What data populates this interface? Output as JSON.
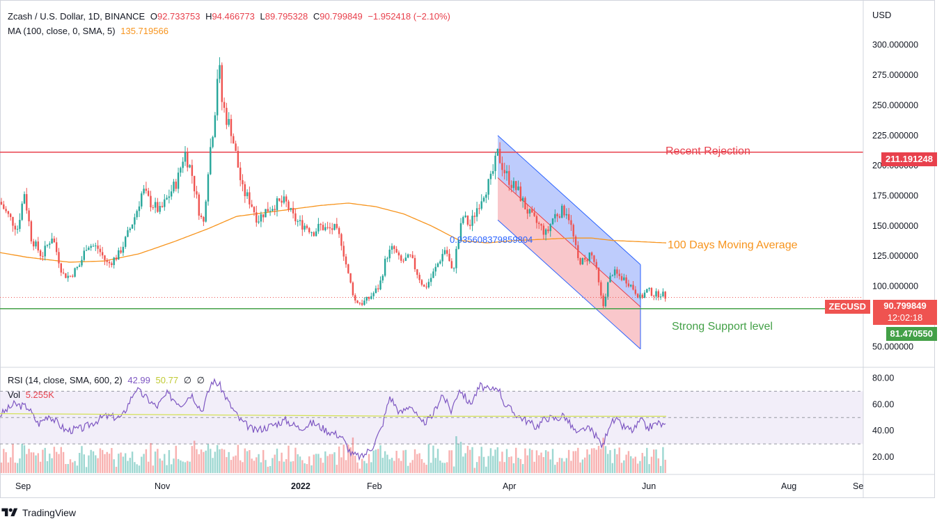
{
  "legend": {
    "symbol": "Zcash / U.S. Dollar, 1D, BINANCE",
    "open_label": "O",
    "open": "92.733753",
    "high_label": "H",
    "high": "94.466773",
    "low_label": "L",
    "low": "89.795328",
    "close_label": "C",
    "close": "90.799849",
    "change": "−1.952418 (−2.10%)",
    "ma_label": "MA (100, close, 0, SMA, 5)",
    "ma_value": "135.719566",
    "rsi_label": "RSI (14, close, SMA, 600, 2)",
    "rsi_value": "42.99",
    "rsi_ma_value": "50.77",
    "rsi_extra1": "∅",
    "rsi_extra2": "∅",
    "vol_label": "Vol",
    "vol_value": "5.255K"
  },
  "currency": "USD",
  "annotations": {
    "resistance": "Recent Rejection",
    "moving_average": "100 Days Moving Average",
    "support": "Strong Support level",
    "channel_value": "0.935608379859804"
  },
  "price_tags": {
    "resistance": "211.191248",
    "symbol": "ZECUSD",
    "current": "90.799849",
    "countdown": "12:02:18",
    "support": "81.470550"
  },
  "footer": {
    "brand": "TradingView"
  },
  "colors": {
    "up": "#26a69a",
    "down": "#ef5350",
    "ma": "#f7941d",
    "resistance": "#e8404c",
    "support": "#43a047",
    "rsi": "#7e57c2",
    "rsi_ma": "#d4e157",
    "channel_blue": "#aebffb",
    "channel_red": "#f8b9be",
    "annotation_blue": "#2962ff"
  },
  "chart_data": {
    "type": "candlestick",
    "price_axis": {
      "ticks": [
        "300.000000",
        "275.000000",
        "250.000000",
        "225.000000",
        "200.000000",
        "175.000000",
        "150.000000",
        "125.000000",
        "100.000000",
        "50.000000"
      ],
      "ylim": [
        45,
        320
      ]
    },
    "rsi_axis": {
      "ticks": [
        "80.00",
        "60.00",
        "40.00",
        "20.00"
      ],
      "ylim": [
        10,
        85
      ],
      "upper_band": 70,
      "lower_band": 30,
      "middle_band": 50
    },
    "x_ticks": [
      "Sep",
      "Nov",
      "2022",
      "Feb",
      "Apr",
      "Jun",
      "Aug",
      "Se"
    ],
    "levels": {
      "resistance": 211.19,
      "support": 81.47,
      "last_close": 90.8
    },
    "price_keyframes": [
      [
        0,
        170
      ],
      [
        10,
        160
      ],
      [
        25,
        148
      ],
      [
        35,
        178
      ],
      [
        45,
        140
      ],
      [
        60,
        125
      ],
      [
        75,
        142
      ],
      [
        90,
        110
      ],
      [
        100,
        108
      ],
      [
        115,
        118
      ],
      [
        125,
        135
      ],
      [
        140,
        132
      ],
      [
        155,
        118
      ],
      [
        170,
        126
      ],
      [
        180,
        138
      ],
      [
        195,
        160
      ],
      [
        205,
        180
      ],
      [
        215,
        170
      ],
      [
        230,
        162
      ],
      [
        245,
        178
      ],
      [
        255,
        188
      ],
      [
        265,
        212
      ],
      [
        275,
        195
      ],
      [
        285,
        165
      ],
      [
        292,
        150
      ],
      [
        300,
        205
      ],
      [
        308,
        240
      ],
      [
        314,
        290
      ],
      [
        318,
        255
      ],
      [
        325,
        240
      ],
      [
        332,
        230
      ],
      [
        340,
        205
      ],
      [
        348,
        180
      ],
      [
        360,
        170
      ],
      [
        370,
        155
      ],
      [
        380,
        162
      ],
      [
        395,
        168
      ],
      [
        410,
        170
      ],
      [
        420,
        158
      ],
      [
        430,
        152
      ],
      [
        440,
        150
      ],
      [
        450,
        145
      ],
      [
        460,
        150
      ],
      [
        470,
        147
      ],
      [
        480,
        148
      ],
      [
        490,
        138
      ],
      [
        500,
        110
      ],
      [
        510,
        88
      ],
      [
        520,
        86
      ],
      [
        530,
        90
      ],
      [
        545,
        100
      ],
      [
        555,
        125
      ],
      [
        565,
        132
      ],
      [
        575,
        120
      ],
      [
        590,
        124
      ],
      [
        600,
        110
      ],
      [
        610,
        98
      ],
      [
        620,
        108
      ],
      [
        630,
        120
      ],
      [
        640,
        132
      ],
      [
        650,
        110
      ],
      [
        655,
        128
      ],
      [
        665,
        158
      ],
      [
        675,
        150
      ],
      [
        685,
        165
      ],
      [
        695,
        178
      ],
      [
        705,
        188
      ],
      [
        715,
        210
      ],
      [
        725,
        195
      ],
      [
        735,
        185
      ],
      [
        745,
        178
      ],
      [
        755,
        165
      ],
      [
        765,
        156
      ],
      [
        775,
        150
      ],
      [
        785,
        143
      ],
      [
        795,
        158
      ],
      [
        805,
        162
      ],
      [
        815,
        163
      ],
      [
        822,
        145
      ],
      [
        830,
        122
      ],
      [
        840,
        120
      ],
      [
        848,
        128
      ],
      [
        855,
        118
      ],
      [
        862,
        95
      ],
      [
        866,
        82
      ],
      [
        872,
        100
      ],
      [
        880,
        112
      ],
      [
        890,
        108
      ],
      [
        900,
        105
      ],
      [
        910,
        98
      ],
      [
        920,
        90
      ],
      [
        930,
        97
      ],
      [
        940,
        93
      ],
      [
        950,
        94
      ],
      [
        957,
        91
      ]
    ],
    "ma_keyframes": [
      [
        0,
        128
      ],
      [
        40,
        124
      ],
      [
        100,
        120
      ],
      [
        150,
        121
      ],
      [
        200,
        127
      ],
      [
        250,
        137
      ],
      [
        300,
        148
      ],
      [
        340,
        158
      ],
      [
        380,
        161
      ],
      [
        420,
        164
      ],
      [
        460,
        167
      ],
      [
        500,
        169
      ],
      [
        540,
        166
      ],
      [
        580,
        160
      ],
      [
        620,
        150
      ],
      [
        660,
        138
      ],
      [
        700,
        136
      ],
      [
        740,
        138
      ],
      [
        780,
        139
      ],
      [
        820,
        140
      ],
      [
        850,
        140
      ],
      [
        880,
        138
      ],
      [
        920,
        137
      ],
      [
        957,
        136
      ]
    ],
    "rsi_keyframes": [
      [
        0,
        52
      ],
      [
        20,
        60
      ],
      [
        40,
        58
      ],
      [
        55,
        45
      ],
      [
        70,
        52
      ],
      [
        95,
        40
      ],
      [
        120,
        42
      ],
      [
        150,
        51
      ],
      [
        175,
        50
      ],
      [
        195,
        72
      ],
      [
        210,
        65
      ],
      [
        225,
        58
      ],
      [
        240,
        68
      ],
      [
        260,
        60
      ],
      [
        275,
        68
      ],
      [
        290,
        55
      ],
      [
        305,
        78
      ],
      [
        315,
        75
      ],
      [
        330,
        60
      ],
      [
        345,
        48
      ],
      [
        365,
        40
      ],
      [
        385,
        43
      ],
      [
        410,
        48
      ],
      [
        430,
        42
      ],
      [
        450,
        46
      ],
      [
        470,
        40
      ],
      [
        490,
        36
      ],
      [
        505,
        22
      ],
      [
        520,
        20
      ],
      [
        535,
        28
      ],
      [
        548,
        42
      ],
      [
        560,
        66
      ],
      [
        575,
        53
      ],
      [
        590,
        60
      ],
      [
        605,
        45
      ],
      [
        620,
        50
      ],
      [
        635,
        68
      ],
      [
        648,
        55
      ],
      [
        660,
        72
      ],
      [
        675,
        60
      ],
      [
        690,
        74
      ],
      [
        705,
        70
      ],
      [
        715,
        74
      ],
      [
        725,
        60
      ],
      [
        740,
        53
      ],
      [
        755,
        48
      ],
      [
        770,
        43
      ],
      [
        785,
        50
      ],
      [
        800,
        49
      ],
      [
        810,
        52
      ],
      [
        820,
        44
      ],
      [
        830,
        37
      ],
      [
        840,
        42
      ],
      [
        850,
        40
      ],
      [
        860,
        33
      ],
      [
        866,
        28
      ],
      [
        875,
        45
      ],
      [
        885,
        48
      ],
      [
        895,
        43
      ],
      [
        910,
        40
      ],
      [
        920,
        48
      ],
      [
        930,
        42
      ],
      [
        945,
        46
      ],
      [
        957,
        43
      ]
    ],
    "rsi_ma": [
      [
        0,
        53
      ],
      [
        300,
        52
      ],
      [
        600,
        51
      ],
      [
        957,
        51
      ]
    ],
    "channel": {
      "upper": [
        [
          715,
          225
        ],
        [
          920,
          118
        ]
      ],
      "lower": [
        [
          715,
          155
        ],
        [
          920,
          48
        ]
      ],
      "mid": [
        [
          715,
          190
        ],
        [
          920,
          83
        ]
      ]
    }
  }
}
